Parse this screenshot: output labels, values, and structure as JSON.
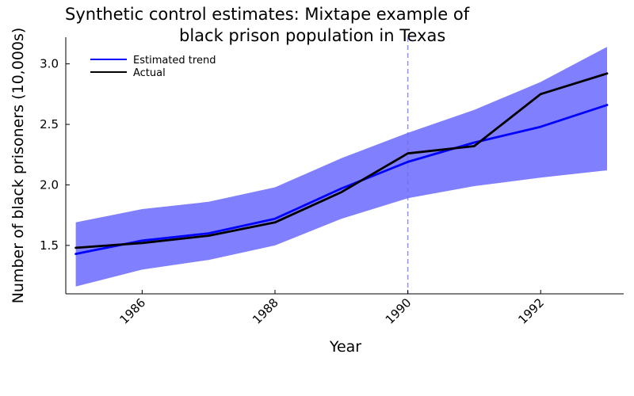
{
  "chart_data": {
    "type": "line",
    "title_line1": "Synthetic control estimates: Mixtape example of",
    "title_line2": "black prison population in Texas",
    "xlabel": "Year",
    "ylabel": "Number of black prisoners (10,000s)",
    "xlim": [
      1984.85,
      1993.25
    ],
    "ylim": [
      1.1,
      3.22
    ],
    "xticks": [
      1986,
      1988,
      1990,
      1992
    ],
    "yticks": [
      1.5,
      2.0,
      2.5,
      3.0
    ],
    "xtick_labels": [
      "1986",
      "1988",
      "1990",
      "1992"
    ],
    "ytick_labels": [
      "1.5",
      "2.0",
      "2.5",
      "3.0"
    ],
    "intervention_year": 1990,
    "grid": false,
    "legend_position": "top-left",
    "x": [
      1985,
      1986,
      1987,
      1988,
      1989,
      1990,
      1991,
      1992,
      1993
    ],
    "series": [
      {
        "name": "Estimated trend",
        "color": "#0000ff",
        "values": [
          1.43,
          1.54,
          1.6,
          1.72,
          1.97,
          2.19,
          2.35,
          2.48,
          2.66
        ]
      },
      {
        "name": "Actual",
        "color": "#000000",
        "values": [
          1.48,
          1.52,
          1.58,
          1.69,
          1.94,
          2.26,
          2.32,
          2.75,
          2.92
        ]
      }
    ],
    "band": {
      "color": "#8080ff",
      "upper": [
        1.69,
        1.8,
        1.86,
        1.98,
        2.22,
        2.43,
        2.62,
        2.85,
        3.14
      ],
      "lower": [
        1.16,
        1.3,
        1.38,
        1.5,
        1.72,
        1.89,
        1.99,
        2.06,
        2.12
      ]
    },
    "vline_color": "#6c6cf0"
  }
}
